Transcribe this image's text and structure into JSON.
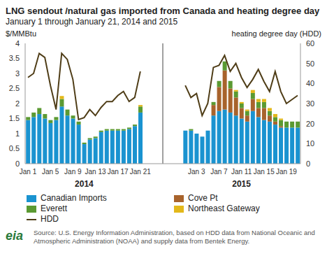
{
  "chart_data": {
    "type": "bar",
    "stacked": true,
    "title": "LNG sendout /natural gas imported from Canada and heating degree day",
    "subtitle": "January 1 through January 21, 2014 and 2015",
    "y_label": "$/MMBtu",
    "y2_label": "heating degree day (HDD)",
    "annotations": [
      "2014",
      "2015"
    ],
    "source": "Source: U.S. Energy Information Administration, based on HDD data from  National Oceanic and Atmospheric Administration (NOAA) and supply data from Bentek Energy.",
    "logo": "eia",
    "categories": [
      "Jan 1",
      null,
      null,
      null,
      "Jan 5",
      null,
      null,
      null,
      "Jan 9",
      null,
      null,
      null,
      "Jan 13",
      null,
      null,
      null,
      "Jan 17",
      null,
      null,
      null,
      "Jan 21",
      null,
      null,
      null,
      null,
      null,
      null,
      null,
      null,
      null,
      "Jan 3",
      null,
      null,
      null,
      "Jan 7",
      null,
      null,
      null,
      "Jan 11",
      null,
      null,
      null,
      "Jan 15",
      null,
      null,
      null,
      "Jan 19",
      null,
      null
    ],
    "ylim": [
      0,
      4
    ],
    "yticks": [
      0,
      0.5,
      1,
      1.5,
      2,
      2.5,
      3,
      3.5,
      4
    ],
    "y2lim": [
      0,
      60
    ],
    "y2ticks": [
      0,
      10,
      20,
      30,
      40,
      50,
      60
    ],
    "series": [
      {
        "name": "Canadian Imports",
        "color": "#1a93d0",
        "values": [
          1.45,
          1.55,
          1.65,
          1.5,
          1.35,
          1.45,
          1.9,
          1.6,
          1.5,
          1.3,
          0.65,
          0.8,
          0.85,
          1.05,
          1.1,
          1.1,
          1.1,
          1.1,
          1.15,
          1.25,
          1.7,
          null,
          null,
          null,
          null,
          null,
          null,
          null,
          1.1,
          1.1,
          1.0,
          0.9,
          1.1,
          1.6,
          1.75,
          1.8,
          1.7,
          1.6,
          1.5,
          1.4,
          1.75,
          1.55,
          1.45,
          1.4,
          1.3,
          1.2,
          1.2,
          1.2,
          1.2
        ]
      },
      {
        "name": "Cove Pt",
        "color": "#a8632c",
        "values": [
          0,
          0,
          0,
          0,
          0,
          0,
          0,
          0,
          0,
          0,
          0,
          0,
          0,
          0,
          0,
          0,
          0,
          0,
          0,
          0,
          0,
          null,
          null,
          null,
          null,
          null,
          null,
          null,
          0,
          0,
          0,
          0,
          0,
          0.35,
          0.8,
          1.3,
          0.8,
          0.6,
          0.35,
          0.2,
          0.4,
          0.3,
          0.4,
          0.2,
          0.1,
          0.05,
          0,
          0,
          0
        ]
      },
      {
        "name": "Everett",
        "color": "#5b9a32",
        "values": [
          0.1,
          0.15,
          0.2,
          0.15,
          0.1,
          0.1,
          0.25,
          0.2,
          0.1,
          0.1,
          0.05,
          0.05,
          0.05,
          0.05,
          0.05,
          0.05,
          0.05,
          0.05,
          0.05,
          0.05,
          0.2,
          null,
          null,
          null,
          null,
          null,
          null,
          null,
          0,
          0.05,
          0,
          0,
          0,
          0.1,
          0.2,
          0.3,
          0.25,
          0.2,
          0.15,
          0.15,
          0.2,
          0.2,
          0.2,
          0.15,
          0.15,
          0.2,
          0.2,
          0.2,
          0.2
        ]
      },
      {
        "name": "Northeast Gateway",
        "color": "#e3b81a",
        "values": [
          0,
          0,
          0,
          0,
          0,
          0,
          0.1,
          0,
          0,
          0,
          0,
          0,
          0,
          0,
          0,
          0,
          0,
          0,
          0,
          0,
          0.05,
          null,
          null,
          null,
          null,
          null,
          null,
          null,
          0,
          0,
          0,
          0,
          0,
          0,
          0,
          0,
          0,
          0.05,
          0.05,
          0.05,
          0.1,
          0.1,
          0.1,
          0.1,
          0.1,
          0.05,
          0,
          0,
          0
        ]
      },
      {
        "name": "HDD",
        "type": "line",
        "axis": "y2",
        "color": "#4f3d17",
        "values": [
          43,
          45,
          55,
          53,
          39,
          27,
          55,
          52,
          42,
          22,
          23,
          27,
          24,
          28,
          31,
          31,
          34,
          36,
          31,
          33,
          46,
          null,
          null,
          null,
          null,
          null,
          null,
          null,
          39,
          33,
          35,
          24,
          30,
          48,
          49,
          54,
          46,
          50,
          43,
          38,
          42,
          47,
          41,
          36,
          46,
          36,
          30,
          32,
          34
        ]
      }
    ]
  }
}
